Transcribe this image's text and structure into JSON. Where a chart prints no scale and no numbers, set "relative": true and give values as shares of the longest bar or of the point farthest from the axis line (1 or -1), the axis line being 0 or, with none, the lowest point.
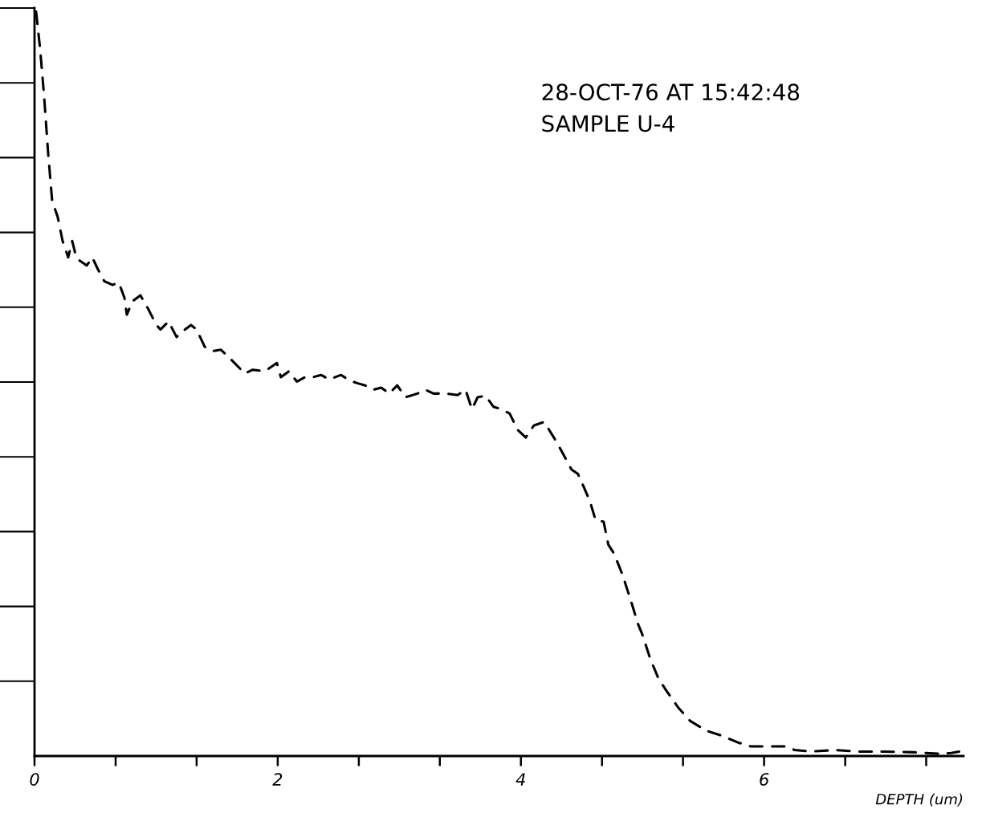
{
  "chart_data": {
    "type": "line",
    "relative": true,
    "xlabel": "DEPTH (um)",
    "annotations": [
      "28-OCT-76 AT 15:42:48",
      "SAMPLE U-4"
    ],
    "xlim": [
      0,
      7.64
    ],
    "xticks": [
      0,
      {
        "value": 0.667,
        "label": null
      },
      {
        "value": 1.333,
        "label": null
      },
      2,
      {
        "value": 2.667,
        "label": null
      },
      {
        "value": 3.333,
        "label": null
      },
      4,
      {
        "value": 4.667,
        "label": null
      },
      {
        "value": 5.333,
        "label": null
      },
      6,
      {
        "value": 6.667,
        "label": null
      },
      {
        "value": 7.333,
        "label": null
      }
    ],
    "line_style": "dashed",
    "marker": "none",
    "grid": false,
    "legend": false,
    "series": [
      {
        "color": "#000000",
        "x": [
          0.013,
          0.046,
          0.079,
          0.112,
          0.145,
          0.191,
          0.231,
          0.277,
          0.31,
          0.343,
          0.376,
          0.429,
          0.475,
          0.521,
          0.574,
          0.64,
          0.693,
          0.739,
          0.759,
          0.805,
          0.871,
          0.937,
          1.003,
          1.036,
          1.102,
          1.168,
          1.221,
          1.287,
          1.333,
          1.399,
          1.465,
          1.531,
          1.597,
          1.663,
          1.729,
          1.795,
          1.894,
          1.993,
          2.026,
          2.092,
          2.158,
          2.224,
          2.29,
          2.356,
          2.422,
          2.521,
          2.587,
          2.653,
          2.719,
          2.785,
          2.851,
          2.917,
          2.983,
          3.05,
          3.149,
          3.215,
          3.281,
          3.38,
          3.479,
          3.545,
          3.597,
          3.644,
          3.71,
          3.776,
          3.842,
          3.908,
          3.974,
          4.04,
          4.106,
          4.191,
          4.271,
          4.337,
          4.416,
          4.469,
          4.521,
          4.568,
          4.614,
          4.68,
          4.719,
          4.766,
          4.832,
          4.898,
          4.964,
          4.997,
          5.063,
          5.129,
          5.195,
          5.294,
          5.393,
          5.525,
          5.657,
          5.789,
          5.888,
          6.053,
          6.185,
          6.251,
          6.383,
          6.581,
          6.779,
          6.977,
          7.241,
          7.439,
          7.538,
          7.604
        ],
        "values": [
          1.0,
          0.95,
          0.886,
          0.81,
          0.746,
          0.724,
          0.692,
          0.67,
          0.692,
          0.67,
          0.665,
          0.659,
          0.67,
          0.654,
          0.638,
          0.633,
          0.636,
          0.616,
          0.593,
          0.611,
          0.619,
          0.6,
          0.579,
          0.573,
          0.584,
          0.563,
          0.571,
          0.579,
          0.573,
          0.55,
          0.544,
          0.546,
          0.536,
          0.525,
          0.514,
          0.519,
          0.517,
          0.528,
          0.509,
          0.517,
          0.503,
          0.509,
          0.509,
          0.512,
          0.506,
          0.512,
          0.505,
          0.501,
          0.498,
          0.492,
          0.495,
          0.487,
          0.498,
          0.482,
          0.487,
          0.492,
          0.487,
          0.487,
          0.485,
          0.492,
          0.466,
          0.482,
          0.484,
          0.469,
          0.466,
          0.46,
          0.438,
          0.428,
          0.444,
          0.449,
          0.428,
          0.409,
          0.385,
          0.379,
          0.36,
          0.342,
          0.317,
          0.315,
          0.284,
          0.272,
          0.245,
          0.212,
          0.177,
          0.164,
          0.131,
          0.105,
          0.088,
          0.065,
          0.047,
          0.034,
          0.027,
          0.018,
          0.013,
          0.013,
          0.013,
          0.008,
          0.006,
          0.008,
          0.006,
          0.006,
          0.005,
          0.003,
          0.004,
          0.006
        ]
      }
    ]
  }
}
